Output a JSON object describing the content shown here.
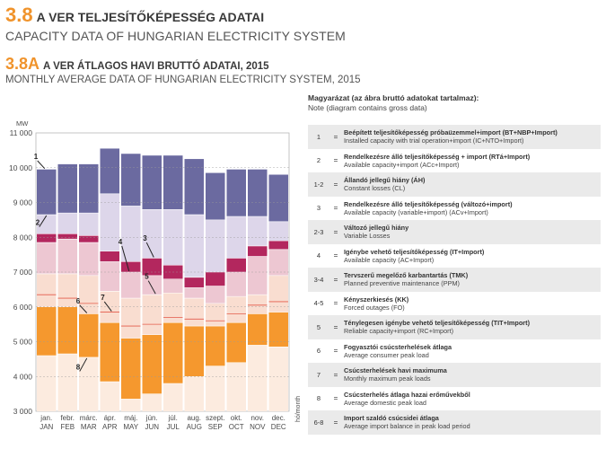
{
  "header": {
    "section_num": "3.8",
    "section_title": "A VER TELJESÍTŐKÉPESSÉG ADATAI",
    "section_subtitle": "CAPACITY DATA OF HUNGARIAN ELECTRICITY SYSTEM",
    "sub_num": "3.8A",
    "sub_title": "A VER ÁTLAGOS HAVI BRUTTÓ ADATAI, 2015",
    "sub_subtitle": "MONTHLY AVERAGE DATA OF HUNGARIAN ELECTRICITY SYSTEM, 2015"
  },
  "legend": {
    "title": "Magyarázat (az ábra bruttó adatokat tartalmaz):",
    "note": "Note (diagram contains gross data)",
    "eq": "=",
    "rows": [
      {
        "id": "1",
        "hu": "Beépített teljesítőképesség próbaüzemmel+import (BT+NBP+Import)",
        "en": "Installed capacity with trial operation+import (IC+NTO+Import)"
      },
      {
        "id": "2",
        "hu": "Rendelkezésre álló teljesítőképesség + import (RTá+Import)",
        "en": "Available capacity+import (ACc+Import)"
      },
      {
        "id": "1-2",
        "hu": "Állandó jellegű hiány (ÁH)",
        "en": "Constant losses (CL)"
      },
      {
        "id": "3",
        "hu": "Rendelkezésre álló teljesítőképesség (változó+import)",
        "en": "Available capacity (variable+import) (ACv+Import)"
      },
      {
        "id": "2-3",
        "hu": "Változó jellegű hiány",
        "en": "Variable Losses"
      },
      {
        "id": "4",
        "hu": "Igénybe vehető teljesítőképesség (IT+Import)",
        "en": "Available capacity (AC+Import)"
      },
      {
        "id": "3-4",
        "hu": "Tervszerű megelőző karbantartás (TMK)",
        "en": "Planned preventive maintenance (PPM)"
      },
      {
        "id": "4-5",
        "hu": "Kényszerkiesés (KK)",
        "en": "Forced outages (FO)"
      },
      {
        "id": "5",
        "hu": "Ténylegesen igénybe vehető teljesítőképesség (TIT+Import)",
        "en": "Reliable capacity+import (RC+Import)"
      },
      {
        "id": "6",
        "hu": "Fogyasztói csúcsterhelések átlaga",
        "en": "Average consumer peak load"
      },
      {
        "id": "7",
        "hu": "Csúcsterhelések havi maximuma",
        "en": "Monthly maximum peak loads"
      },
      {
        "id": "8",
        "hu": "Csúcsterhelés átlaga hazai erőművekből",
        "en": "Average domestic peak load"
      },
      {
        "id": "6-8",
        "hu": "Import szaldó csúcsidei átlaga",
        "en": "Average import balance in peak load period"
      }
    ]
  },
  "chart_data": {
    "type": "bar",
    "ylabel": "MW",
    "xlabel": "hó/month",
    "ylim": [
      3000,
      11000
    ],
    "yticks": [
      "3 000",
      "4 000",
      "5 000",
      "6 000",
      "7 000",
      "8 000",
      "9 000",
      "10 000",
      "11 000"
    ],
    "grid": true,
    "categories_hu": [
      "jan.",
      "febr.",
      "márc.",
      "ápr.",
      "máj.",
      "jún.",
      "júl.",
      "aug.",
      "szept.",
      "okt.",
      "nov.",
      "dec."
    ],
    "categories_en": [
      "JAN",
      "FEB",
      "MAR",
      "APR",
      "MAY",
      "JUN",
      "JUL",
      "AUG",
      "SEP",
      "OCT",
      "NOV",
      "DEC"
    ],
    "bands": [
      {
        "key": "1-2",
        "color": "#6b6aa0"
      },
      {
        "key": "2-3",
        "color": "#ddd6ea"
      },
      {
        "key": "3-4",
        "color": "#b3275e"
      },
      {
        "key": "4-5",
        "color": "#edc7d2"
      },
      {
        "key": "5-6",
        "color": "#f9ddd0"
      },
      {
        "key": "6-8",
        "color": "#f5982e"
      },
      {
        "key": "8",
        "color": "#fcebdf"
      }
    ],
    "lines": [
      {
        "key": "1",
        "values": [
          9950,
          10100,
          10100,
          10550,
          10400,
          10350,
          10350,
          10250,
          9850,
          9950,
          9950,
          9800
        ]
      },
      {
        "key": "2",
        "values": [
          8650,
          8700,
          8700,
          9250,
          8900,
          8800,
          8800,
          8650,
          8500,
          8600,
          8600,
          8450
        ]
      },
      {
        "key": "3",
        "values": [
          8100,
          8100,
          8050,
          7600,
          7300,
          7400,
          7200,
          6850,
          7000,
          7400,
          7750,
          7900
        ]
      },
      {
        "key": "4",
        "values": [
          7850,
          7950,
          7850,
          7300,
          7000,
          6900,
          6800,
          6550,
          6600,
          7000,
          7450,
          7650
        ]
      },
      {
        "key": "5",
        "values": [
          6950,
          6950,
          6900,
          6450,
          6250,
          6350,
          6400,
          6250,
          6100,
          6300,
          6350,
          6900
        ]
      },
      {
        "key": "6",
        "values": [
          6000,
          6000,
          5800,
          5550,
          5100,
          5200,
          5550,
          5450,
          5450,
          5550,
          5800,
          5850
        ]
      },
      {
        "key": "7",
        "values": [
          6350,
          6250,
          6100,
          5850,
          5450,
          5500,
          5700,
          5650,
          5600,
          5800,
          6050,
          6150
        ]
      },
      {
        "key": "8",
        "values": [
          4600,
          4650,
          4550,
          3850,
          3350,
          3500,
          3800,
          4000,
          4300,
          4400,
          4900,
          4850
        ]
      }
    ],
    "annotations": [
      "1",
      "2",
      "3",
      "4",
      "5",
      "6",
      "7",
      "8"
    ]
  }
}
